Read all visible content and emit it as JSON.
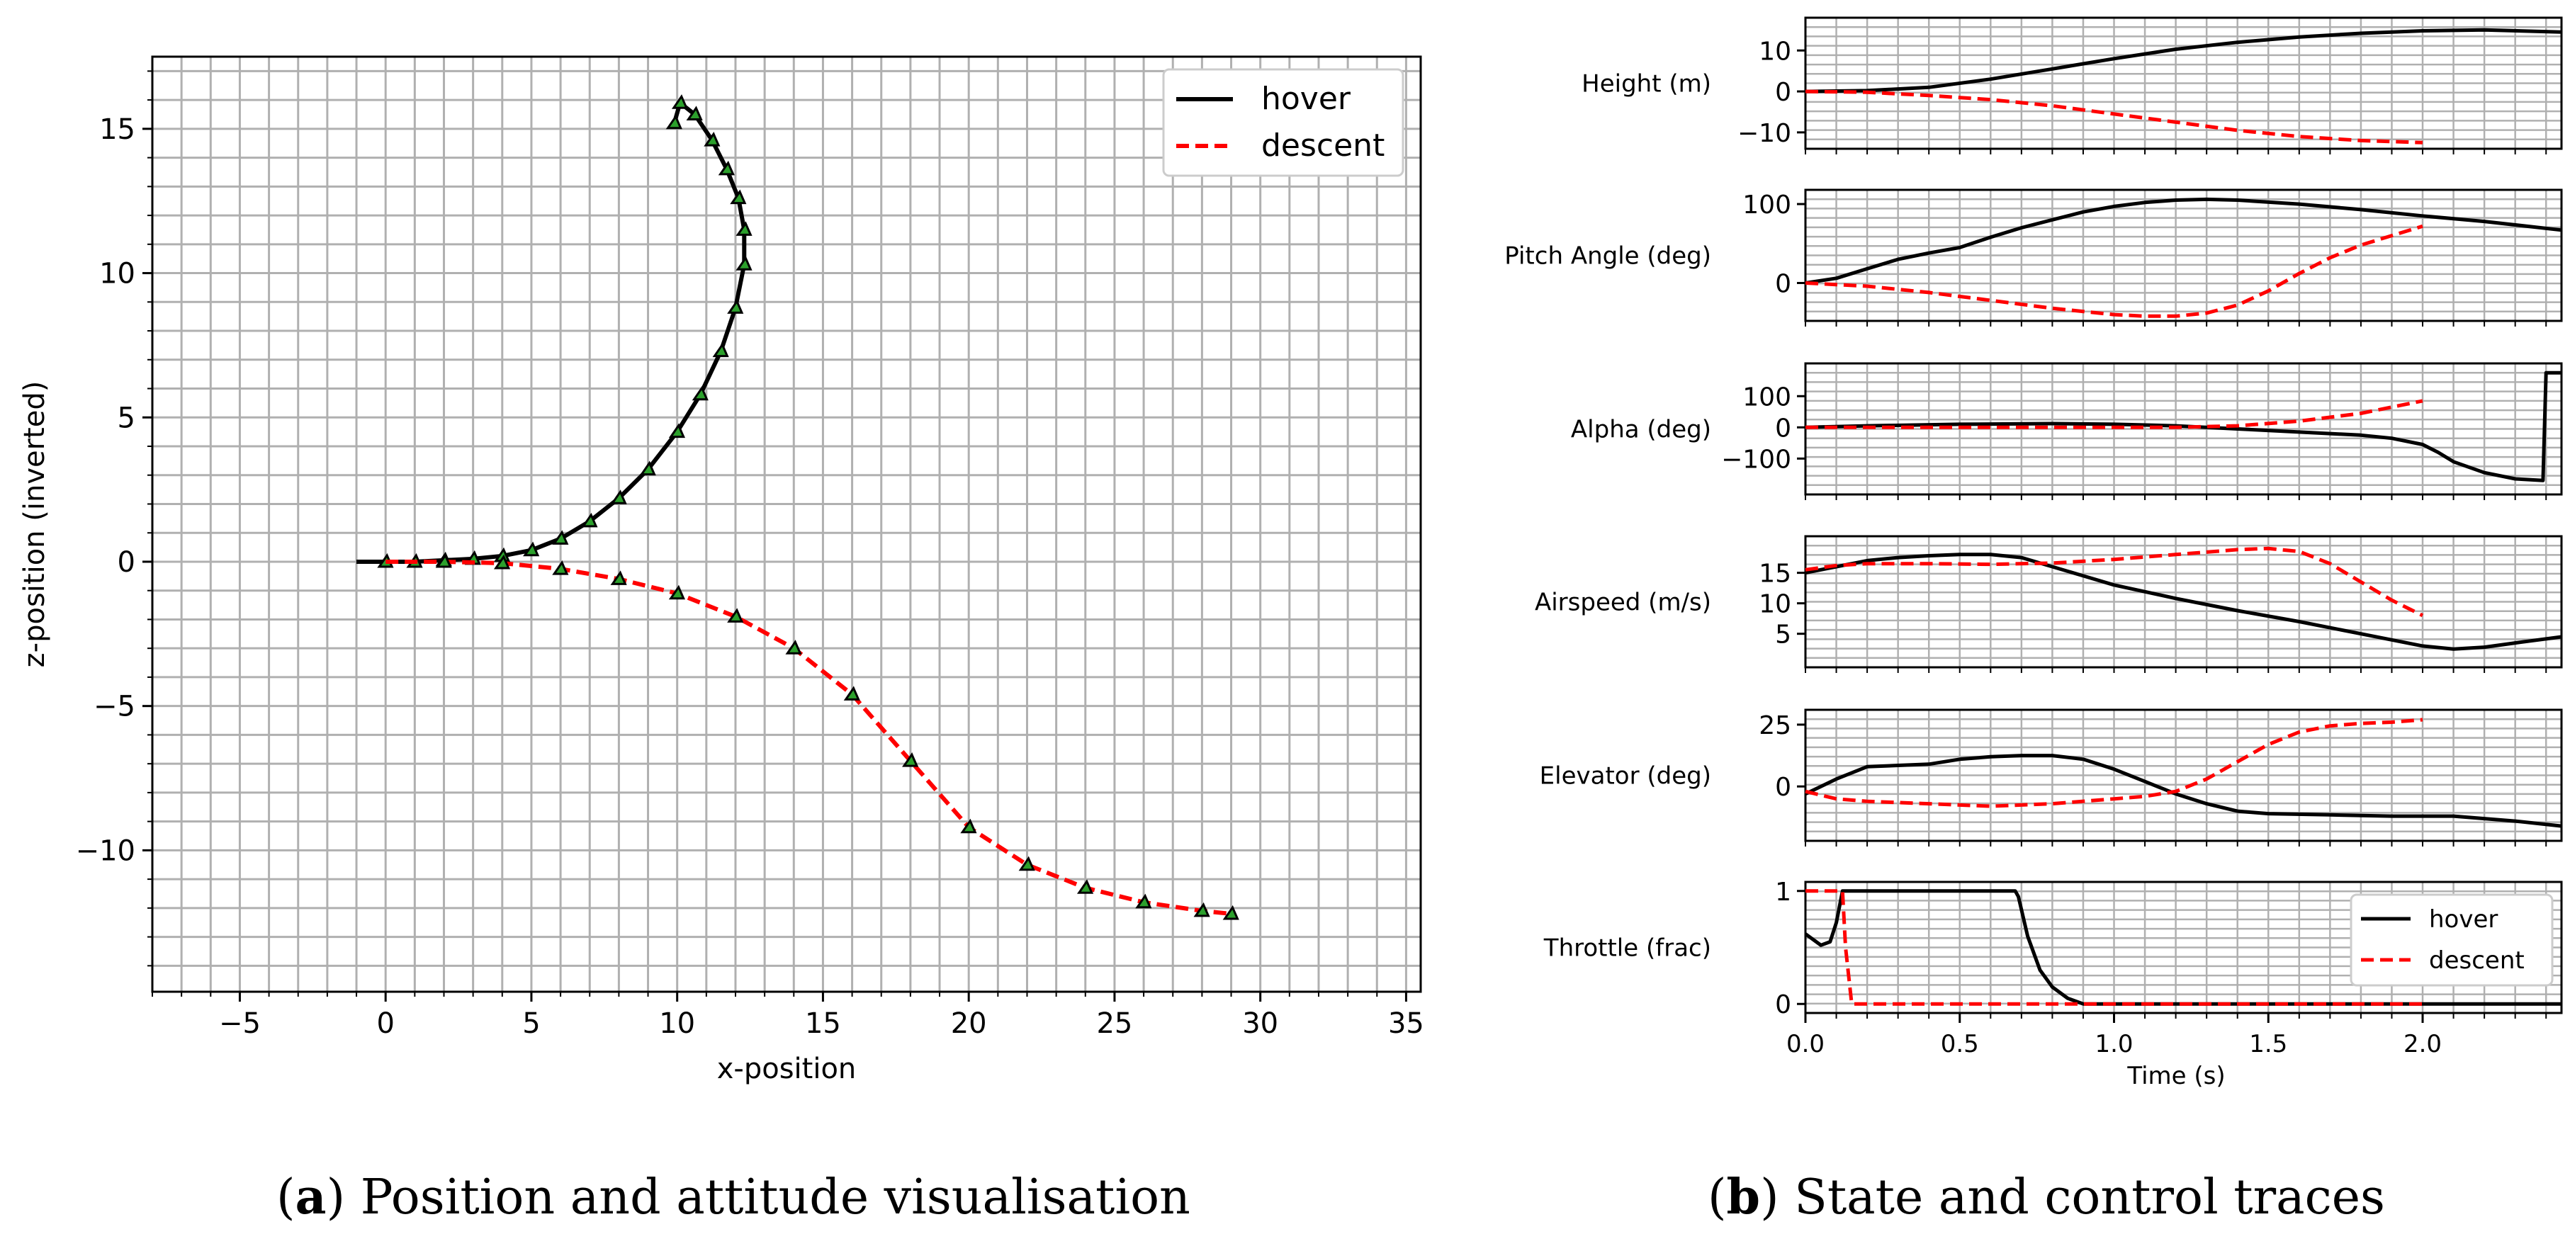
{
  "chart_data": [
    {
      "id": "a",
      "type": "line",
      "caption_letter": "a",
      "caption_text": "Position and attitude visualisation",
      "xlabel": "x-position",
      "ylabel": "z-position (inverted)",
      "xlim": [
        -8,
        35.5
      ],
      "ylim": [
        -14.9,
        17.5
      ],
      "xticks": [
        -5,
        0,
        5,
        10,
        15,
        20,
        25,
        30,
        35
      ],
      "yticks": [
        -10,
        -5,
        0,
        5,
        10,
        15
      ],
      "grid": true,
      "legend": {
        "position": "top-right",
        "entries": [
          "hover",
          "descent"
        ]
      },
      "series": [
        {
          "name": "hover",
          "color": "#000000",
          "dash": "solid",
          "x": [
            -1,
            0,
            1,
            2,
            3,
            4,
            5,
            6,
            7,
            8,
            9,
            10,
            10.8,
            11.5,
            12,
            12.3,
            12.3,
            12.1,
            11.7,
            11.2,
            10.6,
            10.1,
            9.9
          ],
          "y": [
            0,
            0,
            0,
            0.05,
            0.1,
            0.2,
            0.4,
            0.8,
            1.4,
            2.2,
            3.2,
            4.5,
            5.8,
            7.3,
            8.8,
            10.3,
            11.5,
            12.6,
            13.6,
            14.6,
            15.5,
            15.9,
            15.2
          ]
        },
        {
          "name": "descent",
          "color": "#ff0000",
          "dash": "dashed",
          "x": [
            0,
            2,
            4,
            6,
            8,
            10,
            12,
            14,
            16,
            18,
            20,
            22,
            24,
            26,
            28,
            29
          ],
          "y": [
            0,
            0,
            -0.05,
            -0.25,
            -0.6,
            -1.1,
            -1.9,
            -3.0,
            -4.6,
            -6.9,
            -9.2,
            -10.5,
            -11.3,
            -11.8,
            -12.1,
            -12.2
          ]
        }
      ]
    },
    {
      "id": "b",
      "type": "line",
      "caption_letter": "b",
      "caption_text": "State and control traces",
      "xlabel": "Time (s)",
      "xlim": [
        0,
        2.45
      ],
      "xticks": [
        0.0,
        0.5,
        1.0,
        1.5,
        2.0
      ],
      "xticklabels": [
        "0.0",
        "0.5",
        "1.0",
        "1.5",
        "2.0"
      ],
      "legend": {
        "position": "bottom-right",
        "panel": "Throttle (frac)",
        "entries": [
          "hover",
          "descent"
        ]
      },
      "panels": [
        {
          "ylabel": "Height (m)",
          "ylim": [
            -14,
            18
          ],
          "yticks": [
            -10,
            0,
            10
          ],
          "yticklabels": [
            "−10",
            "0",
            "10"
          ],
          "series": [
            {
              "name": "hover",
              "t": [
                0,
                0.2,
                0.4,
                0.6,
                0.8,
                1.0,
                1.2,
                1.4,
                1.6,
                1.8,
                2.0,
                2.2,
                2.45
              ],
              "v": [
                0,
                0.2,
                1.0,
                3.0,
                5.5,
                8.0,
                10.3,
                12.0,
                13.3,
                14.2,
                14.8,
                15.0,
                14.5
              ]
            },
            {
              "name": "descent",
              "t": [
                0,
                0.2,
                0.4,
                0.6,
                0.8,
                1.0,
                1.2,
                1.4,
                1.6,
                1.8,
                2.0
              ],
              "v": [
                0,
                -0.2,
                -1.0,
                -2.0,
                -3.5,
                -5.5,
                -7.5,
                -9.5,
                -11.0,
                -12.0,
                -12.5
              ]
            }
          ]
        },
        {
          "ylabel": "Pitch Angle (deg)",
          "ylim": [
            -48,
            118
          ],
          "yticks": [
            0,
            100
          ],
          "yticklabels": [
            "0",
            "100"
          ],
          "series": [
            {
              "name": "hover",
              "t": [
                0,
                0.1,
                0.2,
                0.3,
                0.4,
                0.5,
                0.6,
                0.7,
                0.8,
                0.9,
                1.0,
                1.1,
                1.2,
                1.3,
                1.4,
                1.6,
                1.8,
                2.0,
                2.2,
                2.45
              ],
              "v": [
                0,
                6,
                18,
                30,
                38,
                45,
                58,
                70,
                80,
                90,
                97,
                102,
                105,
                106,
                105,
                100,
                93,
                85,
                78,
                67
              ]
            },
            {
              "name": "descent",
              "t": [
                0,
                0.2,
                0.4,
                0.6,
                0.8,
                1.0,
                1.1,
                1.2,
                1.3,
                1.4,
                1.5,
                1.6,
                1.7,
                1.8,
                1.9,
                2.0
              ],
              "v": [
                0,
                -4,
                -12,
                -22,
                -32,
                -40,
                -42,
                -42,
                -38,
                -28,
                -10,
                12,
                32,
                48,
                60,
                72
              ]
            }
          ]
        },
        {
          "ylabel": "Alpha (deg)",
          "ylim": [
            -215,
            205
          ],
          "yticks": [
            -100,
            0,
            100
          ],
          "yticklabels": [
            "−100",
            "0",
            "100"
          ],
          "series": [
            {
              "name": "hover",
              "t": [
                0,
                0.2,
                0.5,
                0.8,
                1.0,
                1.2,
                1.4,
                1.6,
                1.8,
                1.9,
                2.0,
                2.05,
                2.1,
                2.2,
                2.3,
                2.39,
                2.4,
                2.45
              ],
              "v": [
                0,
                5,
                10,
                12,
                10,
                5,
                -5,
                -15,
                -25,
                -35,
                -55,
                -80,
                -110,
                -145,
                -165,
                -170,
                175,
                175
              ]
            },
            {
              "name": "descent",
              "t": [
                0,
                0.3,
                0.6,
                0.9,
                1.2,
                1.4,
                1.6,
                1.8,
                1.9,
                2.0
              ],
              "v": [
                0,
                0,
                0,
                0,
                0,
                5,
                20,
                45,
                65,
                85
              ]
            }
          ]
        },
        {
          "ylabel": "Airspeed (m/s)",
          "ylim": [
            -0.5,
            21
          ],
          "yticks": [
            5,
            10,
            15
          ],
          "yticklabels": [
            "5",
            "10",
            "15"
          ],
          "series": [
            {
              "name": "hover",
              "t": [
                0,
                0.1,
                0.2,
                0.3,
                0.4,
                0.5,
                0.6,
                0.7,
                0.8,
                0.9,
                1.0,
                1.2,
                1.4,
                1.6,
                1.8,
                2.0,
                2.1,
                2.2,
                2.3,
                2.45
              ],
              "v": [
                15,
                16,
                17,
                17.5,
                17.8,
                18,
                18,
                17.5,
                16,
                14.5,
                13,
                10.8,
                8.8,
                7,
                5,
                3,
                2.5,
                2.8,
                3.5,
                4.5
              ]
            },
            {
              "name": "descent",
              "t": [
                0,
                0.1,
                0.2,
                0.4,
                0.6,
                0.8,
                1.0,
                1.2,
                1.4,
                1.5,
                1.6,
                1.7,
                1.8,
                1.9,
                2.0
              ],
              "v": [
                15.5,
                16.2,
                16.5,
                16.5,
                16.4,
                16.6,
                17.2,
                18,
                18.8,
                19,
                18.5,
                16.5,
                13.5,
                10.5,
                8
              ]
            }
          ]
        },
        {
          "ylabel": "Elevator (deg)",
          "ylim": [
            -22,
            31
          ],
          "yticks": [
            0,
            25
          ],
          "yticklabels": [
            "0",
            "25"
          ],
          "series": [
            {
              "name": "hover",
              "t": [
                0,
                0.1,
                0.2,
                0.3,
                0.4,
                0.5,
                0.6,
                0.7,
                0.8,
                0.9,
                1.0,
                1.1,
                1.2,
                1.3,
                1.4,
                1.5,
                1.7,
                1.9,
                2.1,
                2.3,
                2.45
              ],
              "v": [
                -3,
                3,
                8,
                8.5,
                9,
                11,
                12,
                12.5,
                12.5,
                11,
                7,
                2,
                -3,
                -7,
                -10,
                -11,
                -11.5,
                -12,
                -12,
                -14,
                -16
              ]
            },
            {
              "name": "descent",
              "t": [
                0,
                0.1,
                0.2,
                0.4,
                0.6,
                0.8,
                1.0,
                1.1,
                1.2,
                1.3,
                1.4,
                1.5,
                1.6,
                1.7,
                1.8,
                1.9,
                2.0
              ],
              "v": [
                -2,
                -5,
                -6,
                -7,
                -8,
                -7,
                -5,
                -4,
                -2,
                3,
                10,
                17,
                22,
                24.5,
                25.5,
                26,
                27
              ]
            }
          ]
        },
        {
          "ylabel": "Throttle (frac)",
          "ylim": [
            -0.08,
            1.08
          ],
          "yticks": [
            0,
            1
          ],
          "yticklabels": [
            "0",
            "1"
          ],
          "series": [
            {
              "name": "hover",
              "t": [
                0,
                0.05,
                0.08,
                0.1,
                0.12,
                0.15,
                0.2,
                0.68,
                0.69,
                0.72,
                0.76,
                0.8,
                0.85,
                0.9,
                1.0,
                2.45
              ],
              "v": [
                0.62,
                0.52,
                0.55,
                0.72,
                1,
                1,
                1,
                1,
                0.95,
                0.6,
                0.3,
                0.15,
                0.05,
                0,
                0,
                0
              ]
            },
            {
              "name": "descent",
              "t": [
                0,
                0.12,
                0.13,
                0.15,
                2.0
              ],
              "v": [
                1,
                1,
                0.5,
                0,
                0
              ]
            }
          ]
        }
      ]
    }
  ]
}
